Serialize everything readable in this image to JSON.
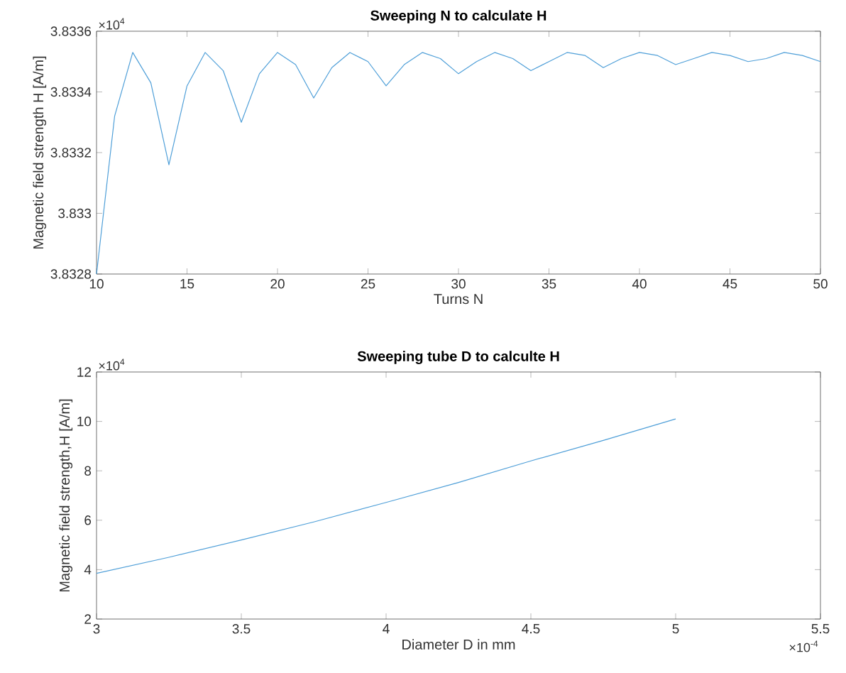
{
  "chart_data": [
    {
      "type": "line",
      "title": "Sweeping N to calculate H",
      "xlabel": "Turns N",
      "ylabel": "Magnetic field strength H [A/m]",
      "x": [
        10,
        11,
        12,
        13,
        14,
        15,
        16,
        17,
        18,
        19,
        20,
        21,
        22,
        23,
        24,
        25,
        26,
        27,
        28,
        29,
        30,
        31,
        32,
        33,
        34,
        35,
        36,
        37,
        38,
        39,
        40,
        41,
        42,
        43,
        44,
        45,
        46,
        47,
        48,
        49,
        50
      ],
      "series": [
        {
          "color": "#4f9fd8",
          "values": [
            3.8328,
            3.83332,
            3.83353,
            3.83343,
            3.83316,
            3.83342,
            3.83353,
            3.83347,
            3.8333,
            3.83346,
            3.83353,
            3.83349,
            3.83338,
            3.83348,
            3.83353,
            3.8335,
            3.83342,
            3.83349,
            3.83353,
            3.83351,
            3.83346,
            3.8335,
            3.83353,
            3.83351,
            3.83347,
            3.8335,
            3.83353,
            3.83352,
            3.83348,
            3.83351,
            3.83353,
            3.83352,
            3.83349,
            3.83351,
            3.83353,
            3.83352,
            3.8335,
            3.83351,
            3.83353,
            3.83352,
            3.8335
          ]
        }
      ],
      "xlim": [
        10,
        50
      ],
      "xticks": [
        10,
        15,
        20,
        25,
        30,
        35,
        40,
        45,
        50
      ],
      "ylim": [
        3.8328,
        3.8336
      ],
      "yticks": [
        3.8328,
        3.833,
        3.8332,
        3.8334,
        3.8336
      ],
      "annotations": [
        "×10$^{4}$"
      ],
      "grid": false
    },
    {
      "type": "line",
      "title": "Sweeping tube D to calculte H",
      "xlabel": "Diameter D in mm",
      "ylabel": "Magnetic field strength,H [A/m]",
      "x": [
        3,
        3.25,
        3.5,
        3.75,
        4,
        4.25,
        4.5,
        4.75,
        5
      ],
      "series": [
        {
          "color": "#4f9fd8",
          "values": [
            3.85,
            4.5,
            5.2,
            5.93,
            6.72,
            7.53,
            8.4,
            9.23,
            10.1
          ]
        }
      ],
      "xlim": [
        3,
        5.5
      ],
      "xticks": [
        3,
        3.5,
        4,
        4.5,
        5,
        5.5
      ],
      "ylim": [
        2,
        12
      ],
      "yticks": [
        2,
        4,
        6,
        8,
        10,
        12
      ],
      "annotations": [
        "×10$^{4}$",
        "×10$^{-4}$"
      ],
      "grid": false
    }
  ]
}
